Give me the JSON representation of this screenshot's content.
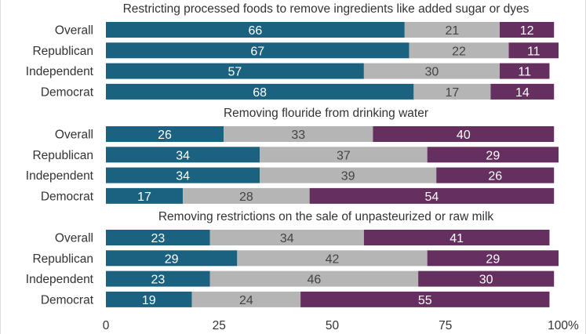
{
  "chart_data": {
    "type": "bar",
    "orientation": "horizontal",
    "stacked": true,
    "xlim": [
      0,
      100
    ],
    "x_ticks": [
      "0",
      "25",
      "50",
      "75",
      "100%"
    ],
    "colors": [
      "#1b6180",
      "#b5b5b5",
      "#65305f"
    ],
    "value_label_colors": [
      "#ffffff",
      "#444444",
      "#ffffff"
    ],
    "panels": [
      {
        "title": "Restricting processed foods to remove ingredients like added sugar or dyes",
        "categories": [
          "Overall",
          "Republican",
          "Independent",
          "Democrat"
        ],
        "values": [
          [
            66,
            21,
            12
          ],
          [
            67,
            22,
            11
          ],
          [
            57,
            30,
            11
          ],
          [
            68,
            17,
            14
          ]
        ]
      },
      {
        "title": "Removing flouride from drinking water",
        "categories": [
          "Overall",
          "Republican",
          "Independent",
          "Democrat"
        ],
        "values": [
          [
            26,
            33,
            40
          ],
          [
            34,
            37,
            29
          ],
          [
            34,
            39,
            26
          ],
          [
            17,
            28,
            54
          ]
        ]
      },
      {
        "title": "Removing restrictions on the sale of unpasteurized or raw milk",
        "categories": [
          "Overall",
          "Republican",
          "Independent",
          "Democrat"
        ],
        "values": [
          [
            23,
            34,
            41
          ],
          [
            29,
            42,
            29
          ],
          [
            23,
            46,
            30
          ],
          [
            19,
            24,
            55
          ]
        ]
      }
    ]
  }
}
